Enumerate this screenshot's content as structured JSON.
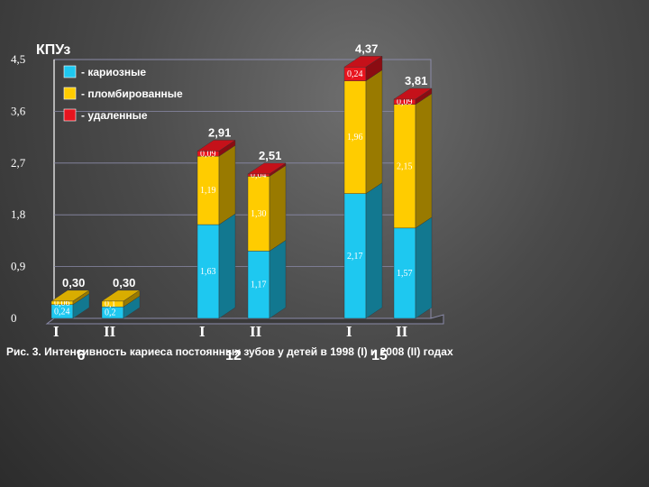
{
  "chart_data": {
    "type": "bar",
    "stacked": true,
    "title": "КПУз",
    "caption": "Рис. 3. Интенсивность кариеса постоянных зубов у детей в 1998 (I) и 2008 (II) годах",
    "yticks": [
      "0",
      "0,9",
      "1,8",
      "2,7",
      "3,6",
      "4,5"
    ],
    "ylim": [
      0,
      4.5
    ],
    "groups": [
      "6",
      "12",
      "15"
    ],
    "categories": [
      "I",
      "II",
      "I",
      "II",
      "I",
      "II"
    ],
    "totals": [
      "0,30",
      "0,30",
      "2,91",
      "2,51",
      "4,37",
      "3,81"
    ],
    "total_values": [
      0.3,
      0.3,
      2.91,
      2.51,
      4.37,
      3.81
    ],
    "series": [
      {
        "name": "- кариозные",
        "color": "#1ec8f0",
        "values": [
          0.24,
          0.2,
          1.63,
          1.17,
          2.17,
          1.57
        ],
        "labels": [
          "0,24",
          "0,2",
          "1,63",
          "1,17",
          "2,17",
          "1,57"
        ]
      },
      {
        "name": "- пломбированные",
        "color": "#ffcc00",
        "values": [
          0.06,
          0.1,
          1.19,
          1.3,
          1.96,
          2.15
        ],
        "labels": [
          "0,06",
          "0,1",
          "1,19",
          "1,30",
          "1,96",
          "2,15"
        ]
      },
      {
        "name": "- удаленные",
        "color": "#e8141e",
        "values": [
          0,
          0,
          0.09,
          0.04,
          0.24,
          0.09
        ],
        "labels": [
          "",
          "",
          "0,09",
          "0,04",
          "0,24",
          "0,09"
        ]
      }
    ],
    "grid": true,
    "legend_position": "top-left"
  }
}
